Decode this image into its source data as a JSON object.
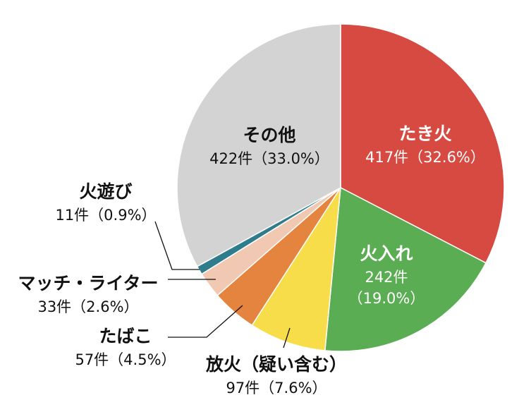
{
  "chart_data": {
    "type": "pie",
    "unit": "件",
    "slices": [
      {
        "label": "たき火",
        "value": 417,
        "percent": "32.6%",
        "color": "#d64a42",
        "text_color": "#ffffff"
      },
      {
        "label": "火入れ",
        "value": 242,
        "percent": "19.0%",
        "color": "#5aad52",
        "text_color": "#ffffff"
      },
      {
        "label": "放火（疑い含む）",
        "value": 97,
        "percent": "7.6%",
        "color": "#f8dd4a",
        "text_color": "#111111"
      },
      {
        "label": "たばこ",
        "value": 57,
        "percent": "4.5%",
        "color": "#e4843e",
        "text_color": "#111111"
      },
      {
        "label": "マッチ・ライター",
        "value": 33,
        "percent": "2.6%",
        "color": "#f1c9b3",
        "text_color": "#111111"
      },
      {
        "label": "火遊び",
        "value": 11,
        "percent": "0.9%",
        "color": "#2e7c8c",
        "text_color": "#111111"
      },
      {
        "label": "その他",
        "value": 422,
        "percent": "33.0%",
        "color": "#d3d3d3",
        "text_color": "#111111"
      }
    ]
  }
}
